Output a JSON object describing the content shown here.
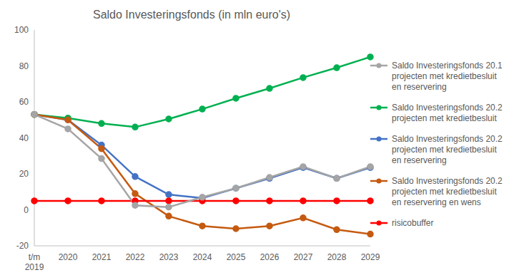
{
  "chart_data": {
    "type": "line",
    "title": "Saldo Investeringsfonds (in mln euro's)",
    "categories": [
      "t/m 2019",
      "2020",
      "2021",
      "2022",
      "2023",
      "2024",
      "2025",
      "2026",
      "2027",
      "2028",
      "2029"
    ],
    "series": [
      {
        "name": "Saldo Investeringsfonds 20.2 projecten met kredietbesluit en reservering",
        "color": "#4472c4",
        "values": [
          53,
          50,
          36,
          18.5,
          8.5,
          6.5,
          12,
          17.5,
          23.5,
          17.5,
          23.5
        ]
      },
      {
        "name": "Saldo Investeringsfonds 20.2 projecten met kredietbesluit",
        "color": "#00b050",
        "values": [
          53,
          51,
          48,
          46,
          50.5,
          56,
          62,
          67.5,
          73.5,
          79,
          85
        ]
      },
      {
        "name": "Saldo Investeringsfonds 20.2 projecten met kredietbesluit en reservering en wens",
        "color": "#c55a11",
        "values": [
          53,
          50,
          34,
          9,
          -3.5,
          -9,
          -10.5,
          -9,
          -4.5,
          -11,
          -13.5
        ]
      },
      {
        "name": "risicobuffer",
        "color": "#ff0000",
        "values": [
          5,
          5,
          5,
          5,
          5,
          5,
          5,
          5,
          5,
          5,
          5
        ]
      },
      {
        "name": "Saldo Investeringsfonds 20.1 projecten met kredietbesluit en reservering",
        "color": "#a5a5a5",
        "values": [
          53,
          45,
          28.5,
          2.5,
          1.5,
          7,
          12,
          18,
          24,
          17.5,
          24
        ]
      }
    ],
    "ylim": [
      -20,
      100
    ],
    "yticks": [
      -20,
      0,
      20,
      40,
      60,
      80,
      100
    ],
    "grid": false,
    "legend": "right",
    "marker": "circle"
  }
}
